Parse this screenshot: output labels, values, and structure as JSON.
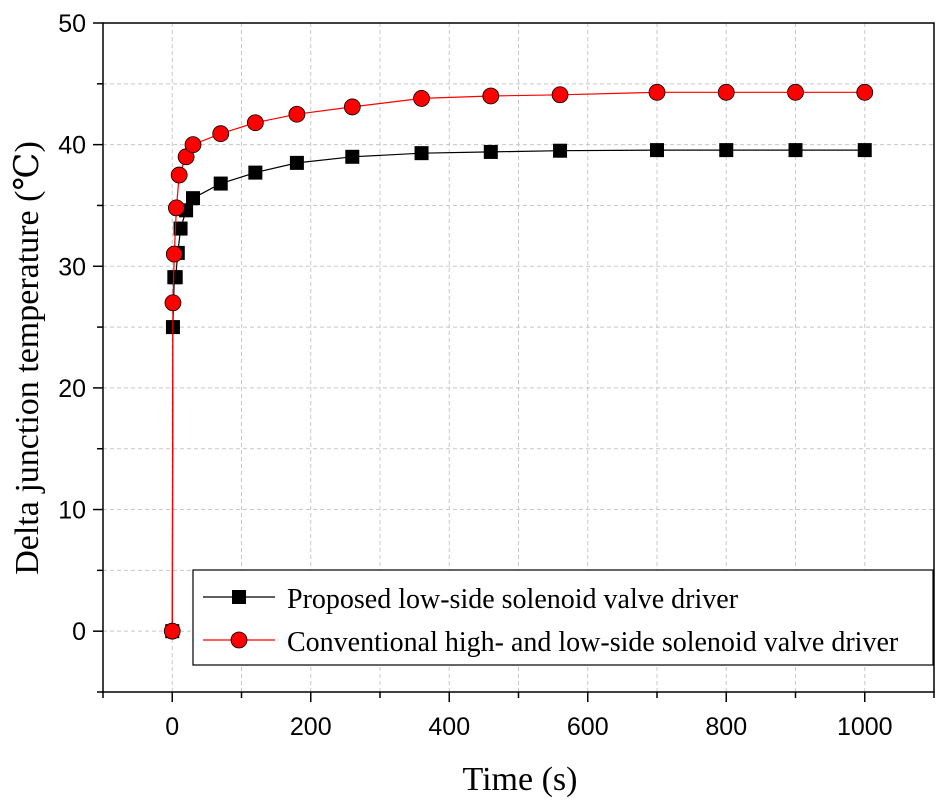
{
  "chart_data": {
    "type": "line",
    "title": "",
    "xlabel": "Time (s)",
    "ylabel": "Delta junction temperature (℃)",
    "xlim": [
      -100,
      1100
    ],
    "ylim": [
      -5,
      50
    ],
    "x_ticks": [
      0,
      200,
      400,
      600,
      800,
      1000
    ],
    "y_ticks": [
      0,
      10,
      20,
      30,
      40,
      50
    ],
    "x_tick_labels": [
      "0",
      "200",
      "400",
      "600",
      "800",
      "1000"
    ],
    "y_tick_labels": [
      "0",
      "10",
      "20",
      "30",
      "40",
      "50"
    ],
    "grid": true,
    "legend_position": "bottom-right",
    "series": [
      {
        "name": "Proposed low-side solenoid valve driver",
        "color": "#000000",
        "marker": "square",
        "points": [
          [
            0,
            0
          ],
          [
            1,
            25
          ],
          [
            3,
            29.1
          ],
          [
            5,
            29.1
          ],
          [
            8,
            31.1
          ],
          [
            12,
            33.1
          ],
          [
            20,
            34.6
          ],
          [
            30,
            35.6
          ],
          [
            70,
            36.8
          ],
          [
            120,
            37.7
          ],
          [
            180,
            38.5
          ],
          [
            260,
            39.0
          ],
          [
            360,
            39.3
          ],
          [
            460,
            39.4
          ],
          [
            560,
            39.5
          ],
          [
            700,
            39.55
          ],
          [
            800,
            39.55
          ],
          [
            900,
            39.55
          ],
          [
            1000,
            39.55
          ]
        ]
      },
      {
        "name": "Conventional high- and low-side solenoid valve driver",
        "color": "#ff0000",
        "marker": "circle",
        "points": [
          [
            0,
            0
          ],
          [
            1,
            27
          ],
          [
            3,
            31
          ],
          [
            6,
            34.8
          ],
          [
            10,
            37.5
          ],
          [
            20,
            39
          ],
          [
            30,
            40
          ],
          [
            70,
            40.9
          ],
          [
            120,
            41.8
          ],
          [
            180,
            42.5
          ],
          [
            260,
            43.1
          ],
          [
            360,
            43.8
          ],
          [
            460,
            44.0
          ],
          [
            560,
            44.1
          ],
          [
            700,
            44.3
          ],
          [
            800,
            44.3
          ],
          [
            900,
            44.3
          ],
          [
            1000,
            44.3
          ]
        ]
      }
    ]
  }
}
